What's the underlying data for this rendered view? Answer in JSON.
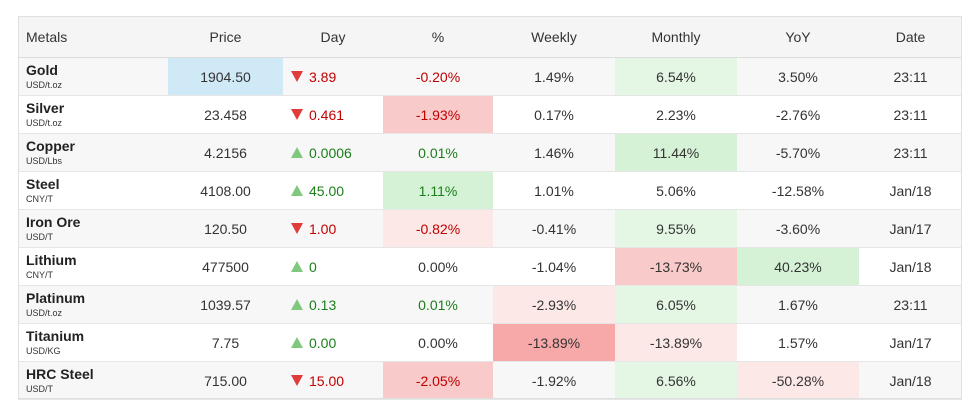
{
  "headers": [
    "Metals",
    "Price",
    "Day",
    "%",
    "Weekly",
    "Monthly",
    "YoY",
    "Date"
  ],
  "rows": [
    {
      "name": "Gold",
      "unit": "USD/t.oz",
      "price": "1904.50",
      "day_dir": "down",
      "day": "3.89",
      "pct": "-0.20%",
      "pct_style": "neg",
      "weekly": "1.49%",
      "monthly": "6.54%",
      "yoy": "3.50%",
      "date": "23:11",
      "bg": {
        "price": "bg-blue",
        "pct": "",
        "weekly": "",
        "monthly": "bg-g1",
        "yoy": ""
      }
    },
    {
      "name": "Silver",
      "unit": "USD/t.oz",
      "price": "23.458",
      "day_dir": "down",
      "day": "0.461",
      "pct": "-1.93%",
      "pct_style": "neg",
      "weekly": "0.17%",
      "monthly": "2.23%",
      "yoy": "-2.76%",
      "date": "23:11",
      "bg": {
        "price": "",
        "pct": "bg-r2",
        "weekly": "",
        "monthly": "",
        "yoy": ""
      }
    },
    {
      "name": "Copper",
      "unit": "USD/Lbs",
      "price": "4.2156",
      "day_dir": "up",
      "day": "0.0006",
      "pct": "0.01%",
      "pct_style": "pos",
      "weekly": "1.46%",
      "monthly": "11.44%",
      "yoy": "-5.70%",
      "date": "23:11",
      "bg": {
        "price": "",
        "pct": "",
        "weekly": "",
        "monthly": "bg-g2",
        "yoy": ""
      }
    },
    {
      "name": "Steel",
      "unit": "CNY/T",
      "price": "4108.00",
      "day_dir": "up",
      "day": "45.00",
      "pct": "1.11%",
      "pct_style": "pos",
      "weekly": "1.01%",
      "monthly": "5.06%",
      "yoy": "-12.58%",
      "date": "Jan/18",
      "bg": {
        "price": "",
        "pct": "bg-g2",
        "weekly": "",
        "monthly": "",
        "yoy": ""
      }
    },
    {
      "name": "Iron Ore",
      "unit": "USD/T",
      "price": "120.50",
      "day_dir": "down",
      "day": "1.00",
      "pct": "-0.82%",
      "pct_style": "neg",
      "weekly": "-0.41%",
      "monthly": "9.55%",
      "yoy": "-3.60%",
      "date": "Jan/17",
      "bg": {
        "price": "",
        "pct": "bg-r1",
        "weekly": "",
        "monthly": "bg-g1",
        "yoy": ""
      }
    },
    {
      "name": "Lithium",
      "unit": "CNY/T",
      "price": "477500",
      "day_dir": "up",
      "day": "0",
      "pct": "0.00%",
      "pct_style": "",
      "weekly": "-1.04%",
      "monthly": "-13.73%",
      "yoy": "40.23%",
      "date": "Jan/18",
      "bg": {
        "price": "",
        "pct": "",
        "weekly": "",
        "monthly": "bg-r2",
        "yoy": "bg-g2"
      }
    },
    {
      "name": "Platinum",
      "unit": "USD/t.oz",
      "price": "1039.57",
      "day_dir": "up",
      "day": "0.13",
      "pct": "0.01%",
      "pct_style": "pos",
      "weekly": "-2.93%",
      "monthly": "6.05%",
      "yoy": "1.67%",
      "date": "23:11",
      "bg": {
        "price": "",
        "pct": "",
        "weekly": "bg-r1",
        "monthly": "bg-g1",
        "yoy": ""
      }
    },
    {
      "name": "Titanium",
      "unit": "USD/KG",
      "price": "7.75",
      "day_dir": "up",
      "day": "0.00",
      "pct": "0.00%",
      "pct_style": "",
      "weekly": "-13.89%",
      "monthly": "-13.89%",
      "yoy": "1.57%",
      "date": "Jan/17",
      "bg": {
        "price": "",
        "pct": "",
        "weekly": "bg-r3",
        "monthly": "bg-r1",
        "yoy": ""
      }
    },
    {
      "name": "HRC Steel",
      "unit": "USD/T",
      "price": "715.00",
      "day_dir": "down",
      "day": "15.00",
      "pct": "-2.05%",
      "pct_style": "neg",
      "weekly": "-1.92%",
      "monthly": "6.56%",
      "yoy": "-50.28%",
      "date": "Jan/18",
      "bg": {
        "price": "",
        "pct": "bg-r2",
        "weekly": "",
        "monthly": "bg-g1",
        "yoy": "bg-r1"
      }
    }
  ],
  "colors": {
    "down": "#e23b3b",
    "up": "#7fc97f",
    "neg_text": "#c00000",
    "pos_text": "#1a7f1a",
    "highlight_blue": "#cfe9f7"
  }
}
